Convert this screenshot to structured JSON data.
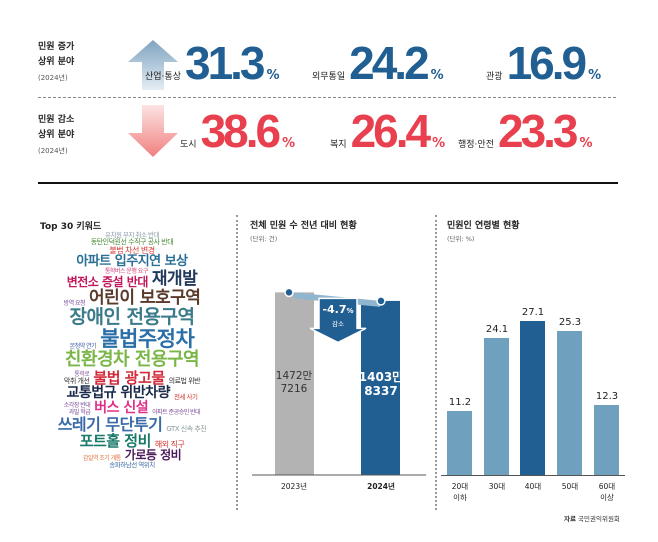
{
  "increase": {
    "title1": "민원 증가",
    "title2": "상위 분야",
    "year": "(2024년)",
    "items": [
      {
        "category": "산업·통상",
        "value": "31.3",
        "unit": "%"
      },
      {
        "category": "외무통일",
        "value": "24.2",
        "unit": "%"
      },
      {
        "category": "관광",
        "value": "16.9",
        "unit": "%"
      }
    ],
    "color": "#215f93"
  },
  "decrease": {
    "title1": "민원 감소",
    "title2": "상위 분야",
    "year": "(2024년)",
    "items": [
      {
        "category": "도시",
        "value": "38.6",
        "unit": "%"
      },
      {
        "category": "복지",
        "value": "26.4",
        "unit": "%"
      },
      {
        "category": "행정·안전",
        "value": "23.3",
        "unit": "%"
      }
    ],
    "color": "#e8404f"
  },
  "keywords": {
    "title": "Top 30 키워드",
    "words": [
      {
        "text": "유치원 부지 취소 반대",
        "color": "#8a9aa8"
      },
      {
        "text": "동탄인덕원선 수직구 공사 반대",
        "color": "#4a8a3a"
      },
      {
        "text": "불법 차선 변경",
        "color": "#d4362f"
      },
      {
        "text": "아파트 입주지연 보상",
        "color": "#2a6f97"
      },
      {
        "text": "통학버스 운행 요구",
        "color": "#d0407a"
      },
      {
        "text": "변전소 증설 반대",
        "color": "#c2185b"
      },
      {
        "text": "재개발",
        "color": "#233a5e"
      },
      {
        "text": "방역 요청",
        "color": "#7a4a9a"
      },
      {
        "text": "어린이 보호구역",
        "color": "#5a3a2a"
      },
      {
        "text": "장애인 전용구역",
        "color": "#3a7a8a"
      },
      {
        "text": "본청약 연기",
        "color": "#3a5aa8"
      },
      {
        "text": "불법주정차",
        "color": "#2a6fa8"
      },
      {
        "text": "친환경차 전용구역",
        "color": "#7ab648"
      },
      {
        "text": "통학로",
        "color": "#8a5a9a"
      },
      {
        "text": "불법 광고물",
        "color": "#d42a3a"
      },
      {
        "text": "악취 개선",
        "color": "#333333"
      },
      {
        "text": "의료법 위반",
        "color": "#333333"
      },
      {
        "text": "교통법규 위반차량",
        "color": "#1a2a4a"
      },
      {
        "text": "전세 사기",
        "color": "#d4362f"
      },
      {
        "text": "소각장 반대",
        "color": "#7a4a9a"
      },
      {
        "text": "과밀 학급",
        "color": "#7a4a9a"
      },
      {
        "text": "버스 신설",
        "color": "#e0308a"
      },
      {
        "text": "아파트 준공승인 반대",
        "color": "#7a4a9a"
      },
      {
        "text": "쓰레기 무단투기",
        "color": "#3a6aa8"
      },
      {
        "text": "GTX 신속 추진",
        "color": "#8a9a9a"
      },
      {
        "text": "포트홀 정비",
        "color": "#1a7a6a"
      },
      {
        "text": "해외 직구",
        "color": "#d4362f"
      },
      {
        "text": "감일역 조기 개통",
        "color": "#e0703a"
      },
      {
        "text": "가로등 정비",
        "color": "#4a1a5a"
      },
      {
        "text": "송파하남선 역위치",
        "color": "#3a6aa8"
      }
    ]
  },
  "chart_data": [
    {
      "type": "bar",
      "title": "전체 민원 수 전년 대비 현황",
      "unit": "(단위: 건)",
      "categories": [
        "2023년",
        "2024년"
      ],
      "values": [
        14727216,
        14038337
      ],
      "labels": [
        [
          "1472만",
          "7216"
        ],
        [
          "1403만",
          "8337"
        ]
      ],
      "change": {
        "value": "-4.7",
        "unit": "%",
        "label": "감소"
      },
      "colors": [
        "#b3b3b3",
        "#215f93"
      ]
    },
    {
      "type": "bar",
      "title": "민원인 연령별 현황",
      "unit": "(단위: %)",
      "categories": [
        [
          "20대",
          "이하"
        ],
        [
          "30대",
          ""
        ],
        [
          "40대",
          ""
        ],
        [
          "50대",
          ""
        ],
        [
          "60대",
          "이상"
        ]
      ],
      "values": [
        11.2,
        24.1,
        27.1,
        25.3,
        12.3
      ],
      "value_labels": [
        "11.2",
        "24.1",
        "27.1",
        "25.3",
        "12.3"
      ],
      "highlight": "40대",
      "colors": {
        "normal": "#6fa1bf",
        "highlight": "#215f93"
      },
      "source_label": "자료",
      "source": "국민권익위원회"
    }
  ]
}
